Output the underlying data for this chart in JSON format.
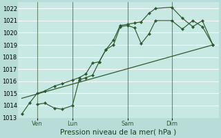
{
  "background_color": "#b8ddd8",
  "plot_bg_color": "#c8e8e4",
  "grid_color": "#ffffff",
  "line_color": "#2d5a2d",
  "vline_color": "#6a8a6a",
  "title": "Pression niveau de la mer( hPa )",
  "ylim": [
    1013,
    1022.5
  ],
  "yticks": [
    1013,
    1014,
    1015,
    1016,
    1017,
    1018,
    1019,
    1020,
    1021,
    1022
  ],
  "xlim": [
    0.0,
    1.05
  ],
  "day_positions": [
    0.1,
    0.285,
    0.575,
    0.805
  ],
  "day_labels": [
    "Ven",
    "Lun",
    "Sam",
    "Dim"
  ],
  "line1_x": [
    0.02,
    0.06,
    0.1,
    0.14,
    0.19,
    0.23,
    0.285,
    0.32,
    0.355,
    0.39,
    0.425,
    0.46,
    0.5,
    0.535,
    0.575,
    0.61,
    0.645,
    0.685,
    0.72,
    0.805,
    0.86,
    0.915,
    0.965,
    1.02
  ],
  "line1_y": [
    1013.3,
    1014.2,
    1015.0,
    1015.2,
    1015.6,
    1015.8,
    1016.1,
    1016.3,
    1016.6,
    1017.5,
    1017.6,
    1018.6,
    1019.4,
    1020.6,
    1020.7,
    1020.8,
    1020.9,
    1021.6,
    1022.0,
    1022.1,
    1021.2,
    1020.5,
    1021.0,
    1019.0
  ],
  "line2_x": [
    0.1,
    0.14,
    0.19,
    0.23,
    0.285,
    0.32,
    0.355,
    0.39,
    0.425,
    0.46,
    0.5,
    0.535,
    0.575,
    0.61,
    0.645,
    0.685,
    0.72,
    0.805,
    0.86,
    0.915,
    0.965,
    1.02
  ],
  "line2_y": [
    1014.1,
    1014.2,
    1013.8,
    1013.7,
    1014.0,
    1016.1,
    1016.3,
    1016.5,
    1017.6,
    1018.6,
    1019.0,
    1020.5,
    1020.6,
    1020.4,
    1019.1,
    1019.9,
    1021.0,
    1021.0,
    1020.3,
    1021.0,
    1020.5,
    1019.0
  ],
  "line3_x": [
    0.02,
    1.02
  ],
  "line3_y": [
    1014.6,
    1019.0
  ],
  "title_fontsize": 7.5,
  "tick_fontsize": 6.0
}
